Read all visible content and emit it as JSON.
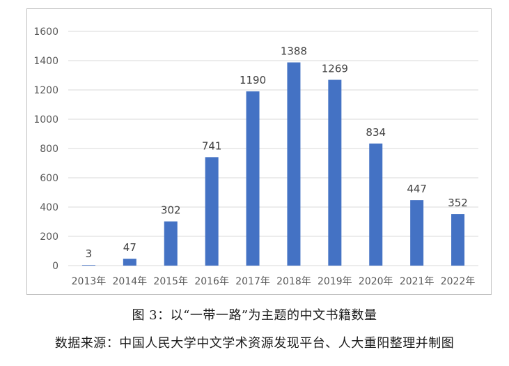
{
  "chart_data": {
    "type": "bar",
    "categories": [
      "2013年",
      "2014年",
      "2015年",
      "2016年",
      "2017年",
      "2018年",
      "2019年",
      "2020年",
      "2021年",
      "2022年"
    ],
    "values": [
      3,
      47,
      302,
      741,
      1190,
      1388,
      1269,
      834,
      447,
      352
    ],
    "data_labels": [
      "3",
      "47",
      "302",
      "741",
      "1190",
      "1388",
      "1269",
      "834",
      "447",
      "352"
    ],
    "y_ticks": [
      0,
      200,
      400,
      600,
      800,
      1000,
      1200,
      1400,
      1600
    ],
    "ylim": [
      0,
      1600
    ],
    "grid": true,
    "legend": "none",
    "bar_color": "#4472c4",
    "grid_color": "#d9d9d9",
    "title": "",
    "xlabel": "",
    "ylabel": ""
  },
  "captions": {
    "figure_title": "图 3：以“一带一路”为主题的中文书籍数量",
    "source": "数据来源：中国人民大学中文学术资源发现平台、人大重阳整理并制图"
  }
}
